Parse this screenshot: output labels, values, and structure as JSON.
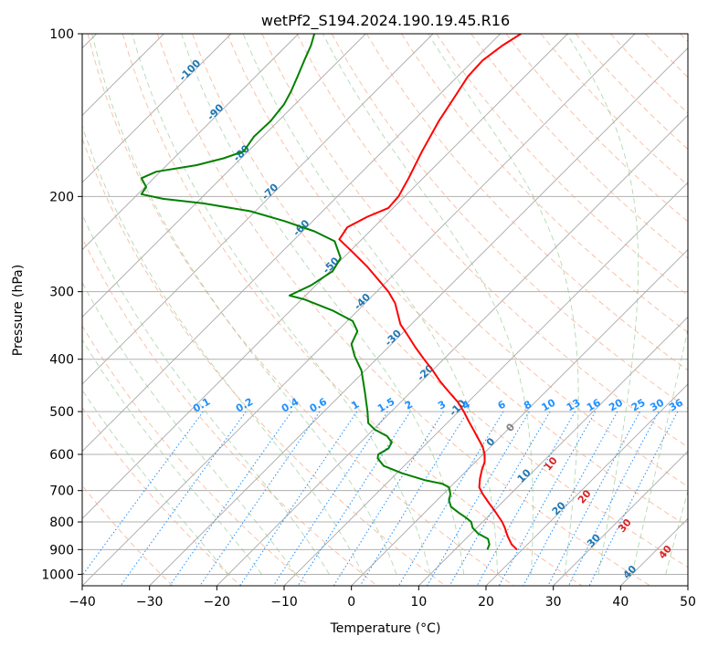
{
  "chart_data": {
    "type": "line",
    "title": "wetPf2_S194.2024.190.19.45.R16",
    "xlabel": "Temperature (°C)",
    "ylabel": "Pressure (hPa)",
    "xlim": [
      -40,
      50
    ],
    "ylim": [
      1050,
      100
    ],
    "y_scale": "log",
    "grid": true,
    "x_ticks": [
      -40,
      -30,
      -20,
      -10,
      0,
      10,
      20,
      30,
      40,
      50
    ],
    "y_ticks": [
      100,
      200,
      300,
      400,
      500,
      600,
      700,
      800,
      900,
      1000
    ],
    "skew_lines_temperature_labels": [
      {
        "value": "-100",
        "t": -100,
        "p": 118
      },
      {
        "value": "-90",
        "t": -90,
        "p": 141
      },
      {
        "value": "-80",
        "t": -80,
        "p": 168
      },
      {
        "value": "-70",
        "t": -70,
        "p": 198
      },
      {
        "value": "-60",
        "t": -60,
        "p": 231
      },
      {
        "value": "-50",
        "t": -50,
        "p": 271
      },
      {
        "value": "-40",
        "t": -40,
        "p": 316
      },
      {
        "value": "-30",
        "t": -30,
        "p": 369
      },
      {
        "value": "-20",
        "t": -20,
        "p": 428
      },
      {
        "value": "-10",
        "t": -10,
        "p": 497
      },
      {
        "value": "0",
        "t": 0,
        "p": 575
      },
      {
        "value": "10",
        "t": 10,
        "p": 664
      },
      {
        "value": "20",
        "t": 20,
        "p": 763
      },
      {
        "value": "30",
        "t": 30,
        "p": 875
      },
      {
        "value": "40",
        "t": 40,
        "p": 1000
      }
    ],
    "mixing_ratio_labels": [
      "0.1",
      "0.2",
      "0.4",
      "0.6",
      "1",
      "1.5",
      "2",
      "3",
      "4",
      "6",
      "8",
      "10",
      "13",
      "16",
      "20",
      "25",
      "30",
      "36"
    ],
    "mixing_ratio_label_pressure": 500,
    "moist_adiabat_labels": [
      {
        "value": "0",
        "t": 24,
        "p": 540
      },
      {
        "value": "10",
        "t": 30,
        "p": 630
      },
      {
        "value": "20",
        "t": 35,
        "p": 725
      },
      {
        "value": "30",
        "t": 41,
        "p": 820
      },
      {
        "value": "40",
        "t": 47,
        "p": 918
      }
    ],
    "series": [
      {
        "name": "",
        "color": "#ff0000",
        "points": [
          [
            24.6,
            900
          ],
          [
            23.8,
            880
          ],
          [
            23.2,
            850
          ],
          [
            22.8,
            820
          ],
          [
            22.4,
            800
          ],
          [
            21.8,
            780
          ],
          [
            21.2,
            760
          ],
          [
            20.5,
            740
          ],
          [
            19.5,
            710
          ],
          [
            19.0,
            690
          ],
          [
            19.1,
            665
          ],
          [
            19.4,
            640
          ],
          [
            19.8,
            620
          ],
          [
            19.8,
            600
          ],
          [
            19.5,
            580
          ],
          [
            18.8,
            560
          ],
          [
            18.3,
            545
          ],
          [
            17.4,
            520
          ],
          [
            16.7,
            500
          ],
          [
            15.8,
            480
          ],
          [
            14.5,
            460
          ],
          [
            13.2,
            440
          ],
          [
            12.1,
            420
          ],
          [
            10.8,
            400
          ],
          [
            9.5,
            380
          ],
          [
            8.3,
            360
          ],
          [
            7.3,
            345
          ],
          [
            6.9,
            330
          ],
          [
            6.5,
            315
          ],
          [
            5.5,
            300
          ],
          [
            4.0,
            285
          ],
          [
            2.4,
            270
          ],
          [
            0.4,
            255
          ],
          [
            -1.8,
            240
          ],
          [
            -0.6,
            228
          ],
          [
            2.4,
            218
          ],
          [
            5.5,
            210
          ],
          [
            7.0,
            200
          ],
          [
            8.5,
            185
          ],
          [
            10.5,
            165
          ],
          [
            13.0,
            145
          ],
          [
            15.5,
            130
          ],
          [
            17.3,
            120
          ],
          [
            19.5,
            112
          ],
          [
            22.5,
            105
          ],
          [
            25.2,
            100
          ]
        ]
      },
      {
        "name": "",
        "color": "#008000",
        "points": [
          [
            20.2,
            900
          ],
          [
            20.5,
            880
          ],
          [
            20.3,
            860
          ],
          [
            18.8,
            840
          ],
          [
            18.0,
            820
          ],
          [
            17.8,
            800
          ],
          [
            17.0,
            785
          ],
          [
            16.0,
            770
          ],
          [
            14.8,
            750
          ],
          [
            14.5,
            730
          ],
          [
            14.7,
            710
          ],
          [
            14.5,
            690
          ],
          [
            13.5,
            680
          ],
          [
            11.0,
            670
          ],
          [
            7.5,
            650
          ],
          [
            4.8,
            630
          ],
          [
            3.9,
            610
          ],
          [
            4.0,
            600
          ],
          [
            5.5,
            585
          ],
          [
            6.0,
            570
          ],
          [
            5.3,
            555
          ],
          [
            3.5,
            540
          ],
          [
            2.5,
            525
          ],
          [
            2.4,
            500
          ],
          [
            2.0,
            460
          ],
          [
            1.5,
            420
          ],
          [
            0.5,
            395
          ],
          [
            0.0,
            375
          ],
          [
            0.9,
            355
          ],
          [
            0.2,
            340
          ],
          [
            -2.8,
            325
          ],
          [
            -7.0,
            310
          ],
          [
            -9.2,
            305
          ],
          [
            -6.0,
            292
          ],
          [
            -2.8,
            275
          ],
          [
            -1.6,
            260
          ],
          [
            -2.5,
            242
          ],
          [
            -5.5,
            232
          ],
          [
            -10.0,
            222
          ],
          [
            -15.0,
            213
          ],
          [
            -22.0,
            206
          ],
          [
            -28.0,
            202
          ],
          [
            -31.2,
            198
          ],
          [
            -30.5,
            192
          ],
          [
            -31.2,
            185
          ],
          [
            -29.0,
            180
          ],
          [
            -23.0,
            175
          ],
          [
            -19.0,
            170
          ],
          [
            -16.0,
            165
          ],
          [
            -14.5,
            155
          ],
          [
            -12.0,
            145
          ],
          [
            -10.0,
            135
          ],
          [
            -9.0,
            128
          ],
          [
            -8.0,
            120
          ],
          [
            -7.0,
            112
          ],
          [
            -6.0,
            105
          ],
          [
            -5.5,
            100
          ]
        ]
      }
    ]
  }
}
